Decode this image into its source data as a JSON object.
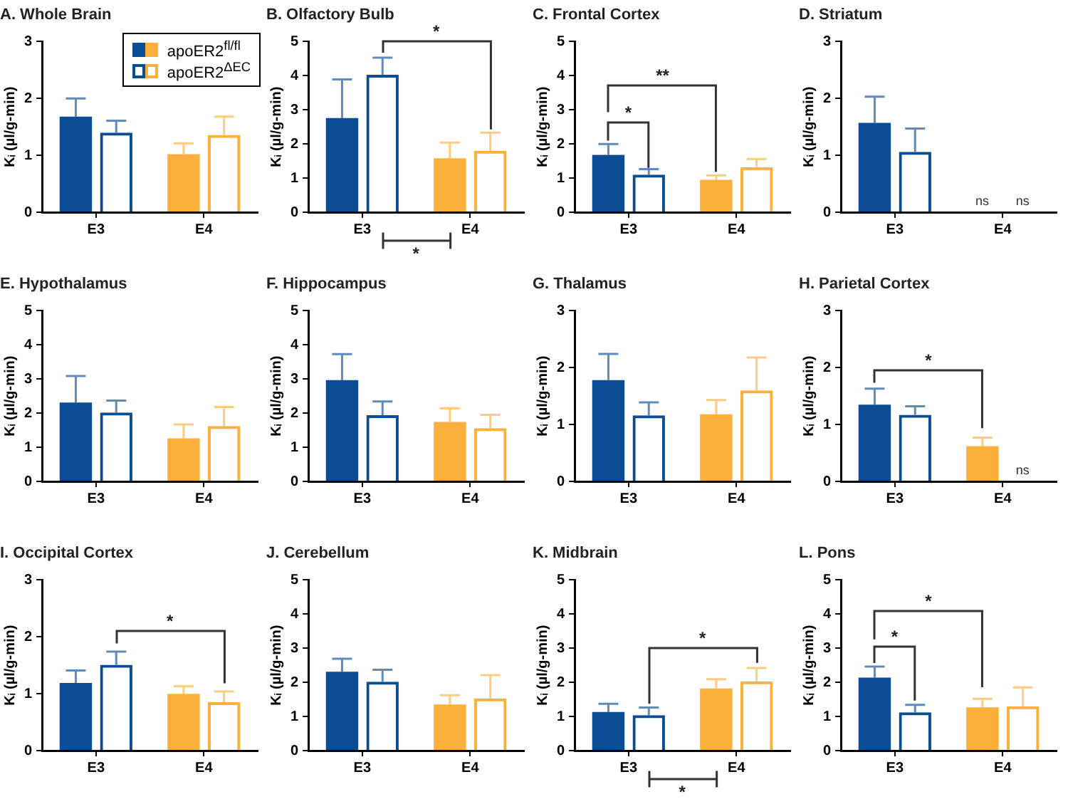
{
  "chart_data": [
    {
      "type": "bar",
      "title": "A. Whole Brain",
      "ylabel": "Kᵢ (µl/g-min)",
      "categories": [
        "E3",
        "E4"
      ],
      "ylim": [
        0,
        3
      ],
      "yticks": [
        0,
        1,
        2,
        3
      ],
      "grid": false,
      "legend": "top right",
      "series": [
        {
          "name": "apoER2$^{fl/fl}$",
          "colors": [
            "#0a4d94",
            "#fbb03b"
          ],
          "values": [
            1.68,
            1.02
          ],
          "errors": [
            [
              1.68,
              2.0
            ],
            [
              1.02,
              1.21
            ]
          ]
        },
        {
          "name": "apoER2$^{ΔEC}$",
          "colors": [
            "#0a4d94",
            "#fbb03b"
          ],
          "values": [
            1.4,
            1.36
          ],
          "errors": [
            [
              1.4,
              1.61
            ],
            [
              1.36,
              1.68
            ]
          ]
        }
      ]
    },
    {
      "type": "bar",
      "title": "B. Olfactory Bulb",
      "ylabel": "Kᵢ (µl/g-min)",
      "categories": [
        "E3",
        "E4"
      ],
      "ylim": [
        0,
        5
      ],
      "yticks": [
        0,
        1,
        2,
        3,
        4,
        5
      ],
      "grid": false,
      "annotations": [
        "*",
        "*"
      ],
      "series": [
        {
          "colors": [
            "#0a4d94",
            "#fbb03b"
          ],
          "values": [
            2.76,
            1.58
          ],
          "errors": [
            [
              2.76,
              3.89
            ],
            [
              1.58,
              2.04
            ]
          ]
        },
        {
          "colors": [
            "#0a4d94",
            "#fbb03b"
          ],
          "values": [
            4.03,
            1.8
          ],
          "errors": [
            [
              4.03,
              4.53
            ],
            [
              1.8,
              2.33
            ]
          ]
        }
      ]
    },
    {
      "type": "bar",
      "title": "C. Frontal Cortex",
      "ylabel": "Kᵢ (µl/g-min)",
      "categories": [
        "E3",
        "E4"
      ],
      "ylim": [
        0,
        5
      ],
      "yticks": [
        0,
        1,
        2,
        3,
        4,
        5
      ],
      "grid": false,
      "annotations": [
        "*",
        "**"
      ],
      "series": [
        {
          "colors": [
            "#0a4d94",
            "#fbb03b"
          ],
          "values": [
            1.68,
            0.95
          ],
          "errors": [
            [
              1.68,
              2.0
            ],
            [
              0.95,
              1.08
            ]
          ]
        },
        {
          "colors": [
            "#0a4d94",
            "#fbb03b"
          ],
          "values": [
            1.1,
            1.32
          ],
          "errors": [
            [
              1.1,
              1.26
            ],
            [
              1.32,
              1.56
            ]
          ]
        }
      ]
    },
    {
      "type": "bar",
      "title": "D. Striatum",
      "ylabel": "Kᵢ (µl/g-min)",
      "categories": [
        "E3",
        "E4"
      ],
      "ylim": [
        0,
        3
      ],
      "yticks": [
        0,
        1,
        2,
        3
      ],
      "grid": false,
      "annotations": [
        "ns",
        "ns"
      ],
      "series": [
        {
          "colors": [
            "#0a4d94",
            "#fbb03b"
          ],
          "values": [
            1.57,
            null
          ],
          "errors": [
            [
              1.57,
              2.03
            ],
            null
          ]
        },
        {
          "colors": [
            "#0a4d94",
            "#fbb03b"
          ],
          "values": [
            1.06,
            null
          ],
          "errors": [
            [
              1.06,
              1.47
            ],
            null
          ]
        }
      ]
    },
    {
      "type": "bar",
      "title": "E. Hypothalamus",
      "ylabel": "Kᵢ (µl/g-min)",
      "categories": [
        "E3",
        "E4"
      ],
      "ylim": [
        0,
        5
      ],
      "yticks": [
        0,
        1,
        2,
        3,
        4,
        5
      ],
      "grid": false,
      "series": [
        {
          "colors": [
            "#0a4d94",
            "#fbb03b"
          ],
          "values": [
            2.31,
            1.26
          ],
          "errors": [
            [
              2.31,
              3.09
            ],
            [
              1.26,
              1.67
            ]
          ]
        },
        {
          "colors": [
            "#0a4d94",
            "#fbb03b"
          ],
          "values": [
            2.02,
            1.62
          ],
          "errors": [
            [
              2.02,
              2.37
            ],
            [
              1.62,
              2.18
            ]
          ]
        }
      ]
    },
    {
      "type": "bar",
      "title": "F. Hippocampus",
      "ylabel": "Kᵢ (µl/g-min)",
      "categories": [
        "E3",
        "E4"
      ],
      "ylim": [
        0,
        5
      ],
      "yticks": [
        0,
        1,
        2,
        3,
        4,
        5
      ],
      "grid": false,
      "series": [
        {
          "colors": [
            "#0a4d94",
            "#fbb03b"
          ],
          "values": [
            2.97,
            1.74
          ],
          "errors": [
            [
              2.97,
              3.73
            ],
            [
              1.74,
              2.14
            ]
          ]
        },
        {
          "colors": [
            "#0a4d94",
            "#fbb03b"
          ],
          "values": [
            1.94,
            1.56
          ],
          "errors": [
            [
              1.94,
              2.34
            ],
            [
              1.56,
              1.95
            ]
          ]
        }
      ]
    },
    {
      "type": "bar",
      "title": "G. Thalamus",
      "ylabel": "Kᵢ (µl/g-min)",
      "categories": [
        "E3",
        "E4"
      ],
      "ylim": [
        0,
        3
      ],
      "yticks": [
        0,
        1,
        2,
        3
      ],
      "grid": false,
      "series": [
        {
          "colors": [
            "#0a4d94",
            "#fbb03b"
          ],
          "values": [
            1.78,
            1.18
          ],
          "errors": [
            [
              1.78,
              2.24
            ],
            [
              1.18,
              1.43
            ]
          ]
        },
        {
          "colors": [
            "#0a4d94",
            "#fbb03b"
          ],
          "values": [
            1.16,
            1.6
          ],
          "errors": [
            [
              1.16,
              1.39
            ],
            [
              1.6,
              2.18
            ]
          ]
        }
      ]
    },
    {
      "type": "bar",
      "title": "H. Parietal Cortex",
      "ylabel": "Kᵢ (µl/g-min)",
      "categories": [
        "E3",
        "E4"
      ],
      "ylim": [
        0,
        3
      ],
      "yticks": [
        0,
        1,
        2,
        3
      ],
      "grid": false,
      "annotations": [
        "*",
        "ns"
      ],
      "series": [
        {
          "colors": [
            "#0a4d94",
            "#fbb03b"
          ],
          "values": [
            1.35,
            0.62
          ],
          "errors": [
            [
              1.35,
              1.63
            ],
            [
              0.62,
              0.77
            ]
          ]
        },
        {
          "colors": [
            "#0a4d94",
            "#fbb03b"
          ],
          "values": [
            1.17,
            null
          ],
          "errors": [
            [
              1.17,
              1.32
            ],
            null
          ]
        }
      ]
    },
    {
      "type": "bar",
      "title": "I. Occipital Cortex",
      "ylabel": "Kᵢ (µl/g-min)",
      "categories": [
        "E3",
        "E4"
      ],
      "ylim": [
        0,
        3
      ],
      "yticks": [
        0,
        1,
        2,
        3
      ],
      "grid": false,
      "annotations": [
        "*"
      ],
      "series": [
        {
          "colors": [
            "#0a4d94",
            "#fbb03b"
          ],
          "values": [
            1.19,
            1.0
          ],
          "errors": [
            [
              1.19,
              1.41
            ],
            [
              1.0,
              1.13
            ]
          ]
        },
        {
          "colors": [
            "#0a4d94",
            "#fbb03b"
          ],
          "values": [
            1.51,
            0.85
          ],
          "errors": [
            [
              1.51,
              1.74
            ],
            [
              0.85,
              1.04
            ]
          ]
        }
      ]
    },
    {
      "type": "bar",
      "title": "J. Cerebellum",
      "ylabel": "Kᵢ (µl/g-min)",
      "categories": [
        "E3",
        "E4"
      ],
      "ylim": [
        0,
        5
      ],
      "yticks": [
        0,
        1,
        2,
        3,
        4,
        5
      ],
      "grid": false,
      "series": [
        {
          "colors": [
            "#0a4d94",
            "#fbb03b"
          ],
          "values": [
            2.31,
            1.35
          ],
          "errors": [
            [
              2.31,
              2.69
            ],
            [
              1.35,
              1.62
            ]
          ]
        },
        {
          "colors": [
            "#0a4d94",
            "#fbb03b"
          ],
          "values": [
            2.02,
            1.53
          ],
          "errors": [
            [
              2.02,
              2.37
            ],
            [
              1.53,
              2.21
            ]
          ]
        }
      ]
    },
    {
      "type": "bar",
      "title": "K. Midbrain",
      "ylabel": "Kᵢ (µl/g-min)",
      "categories": [
        "E3",
        "E4"
      ],
      "ylim": [
        0,
        5
      ],
      "yticks": [
        0,
        1,
        2,
        3,
        4,
        5
      ],
      "grid": false,
      "annotations": [
        "*",
        "*"
      ],
      "series": [
        {
          "colors": [
            "#0a4d94",
            "#fbb03b"
          ],
          "values": [
            1.13,
            1.82
          ],
          "errors": [
            [
              1.13,
              1.37
            ],
            [
              1.82,
              2.09
            ]
          ]
        },
        {
          "colors": [
            "#0a4d94",
            "#fbb03b"
          ],
          "values": [
            1.04,
            2.03
          ],
          "errors": [
            [
              1.04,
              1.26
            ],
            [
              2.03,
              2.42
            ]
          ]
        }
      ]
    },
    {
      "type": "bar",
      "title": "L. Pons",
      "ylabel": "Kᵢ (µl/g-min)",
      "categories": [
        "E3",
        "E4"
      ],
      "ylim": [
        0,
        5
      ],
      "yticks": [
        0,
        1,
        2,
        3,
        4,
        5
      ],
      "grid": false,
      "annotations": [
        "*",
        "*"
      ],
      "series": [
        {
          "colors": [
            "#0a4d94",
            "#fbb03b"
          ],
          "values": [
            2.14,
            1.27
          ],
          "errors": [
            [
              2.14,
              2.46
            ],
            [
              1.27,
              1.52
            ]
          ]
        },
        {
          "colors": [
            "#0a4d94",
            "#fbb03b"
          ],
          "values": [
            1.12,
            1.3
          ],
          "errors": [
            [
              1.12,
              1.34
            ],
            [
              1.3,
              1.85
            ]
          ]
        }
      ]
    }
  ]
}
